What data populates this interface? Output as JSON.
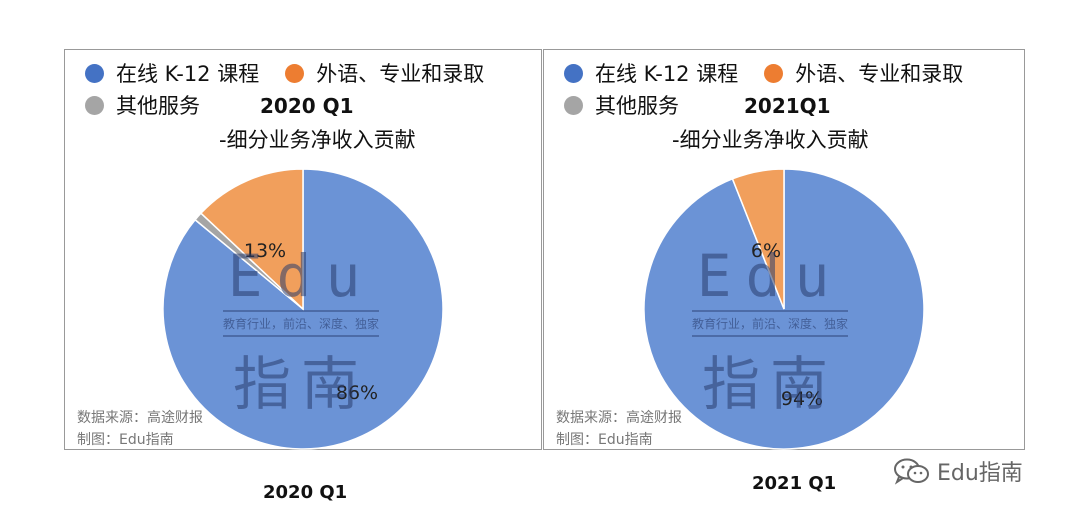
{
  "legend": [
    {
      "label": "在线 K-12 课程",
      "color": "#4472C4"
    },
    {
      "label": "外语、专业和录取",
      "color": "#ED7D31"
    },
    {
      "label": "其他服务",
      "color": "#A5A5A5"
    }
  ],
  "subtitle": "-细分业务净收入贡献",
  "source_text": "数据来源：高途财报",
  "credit_text": "制图：Edu指南",
  "watermark": {
    "edu": "Edu",
    "sub": "教育行业，前沿、深度、独家",
    "cn": "指南"
  },
  "brand": {
    "text": "Edu指南",
    "icon": "wechat-icon"
  },
  "chart_data": [
    {
      "type": "pie",
      "title": "2020 Q1",
      "subtitle": "-细分业务净收入贡献",
      "caption": "2020 Q1",
      "slices": [
        {
          "label": "在线 K-12 课程",
          "value": 86,
          "display": "86%",
          "color": "#6B93D6"
        },
        {
          "label": "外语、专业和录取",
          "value": 13,
          "display": "13%",
          "color": "#F19F5C"
        },
        {
          "label": "其他服务",
          "value": 1,
          "display": "",
          "color": "#A5A5A5"
        }
      ],
      "legend_placement": "top"
    },
    {
      "type": "pie",
      "title": "2021Q1",
      "subtitle": "-细分业务净收入贡献",
      "caption": "2021 Q1",
      "slices": [
        {
          "label": "在线 K-12 课程",
          "value": 94,
          "display": "94%",
          "color": "#6B93D6"
        },
        {
          "label": "外语、专业和录取",
          "value": 6,
          "display": "6%",
          "color": "#F19F5C"
        },
        {
          "label": "其他服务",
          "value": 0,
          "display": "",
          "color": "#A5A5A5"
        }
      ],
      "legend_placement": "top"
    }
  ]
}
